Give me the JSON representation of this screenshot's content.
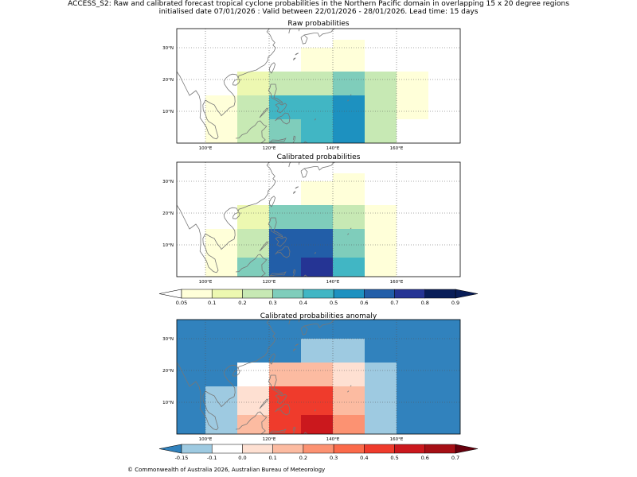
{
  "header": {
    "line1": "ACCESS_S2: Raw and calibrated forecast tropical cyclone probabilities in the Northern Pacific domain in overlapping 15 x 20 degree regions",
    "line2": "initialised date 07/01/2026 :  Valid between 22/01/2026 - 28/01/2026. Lead time: 15 days"
  },
  "panels": {
    "raw": {
      "title": "Raw probabilities"
    },
    "calibrated": {
      "title": "Calibrated probabilities"
    },
    "anomaly": {
      "title": "Calibrated probabilities anomaly"
    }
  },
  "axes": {
    "x_ticks": [
      {
        "lon": 100,
        "label": "100°E"
      },
      {
        "lon": 120,
        "label": "120°E"
      },
      {
        "lon": 140,
        "label": "140°E"
      },
      {
        "lon": 160,
        "label": "160°E"
      }
    ],
    "y_ticks": [
      {
        "lat": 10,
        "label": "10°N"
      },
      {
        "lat": 20,
        "label": "20°N"
      },
      {
        "lat": 30,
        "label": "30°N"
      }
    ],
    "lon_range": [
      91,
      180
    ],
    "lat_range": [
      0,
      36
    ]
  },
  "colorbars": {
    "probability": {
      "labels": [
        "0.05",
        "0.1",
        "0.2",
        "0.3",
        "0.4",
        "0.5",
        "0.6",
        "0.7",
        "0.8",
        "0.9"
      ],
      "colors": [
        "#ffffd9",
        "#edf8b1",
        "#c7e9b4",
        "#7fcdbb",
        "#41b6c4",
        "#1d91c0",
        "#225ea8",
        "#253494",
        "#081d58"
      ],
      "under": "#ffffff",
      "over": "#081d58"
    },
    "anomaly": {
      "labels": [
        "-0.15",
        "-0.1",
        "0.0",
        "0.1",
        "0.2",
        "0.3",
        "0.4",
        "0.5",
        "0.6",
        "0.7"
      ],
      "colors": [
        "#9ecae1",
        "#ffffff",
        "#fee0d2",
        "#fcbba1",
        "#fc9272",
        "#fb6a4a",
        "#ef3b2c",
        "#cb181d",
        "#a50f15"
      ],
      "under": "#3182bd",
      "over": "#67000d"
    }
  },
  "chart_data": [
    {
      "type": "heatmap",
      "title": "Raw probabilities",
      "cells": [
        {
          "lon": [
            120,
            130
          ],
          "lat": [
            0,
            7.5
          ],
          "value": 0.3
        },
        {
          "lon": [
            110,
            120
          ],
          "lat": [
            0,
            7.5
          ],
          "value": 0.2
        },
        {
          "lon": [
            130,
            140
          ],
          "lat": [
            0,
            15
          ],
          "value": 0.4
        },
        {
          "lon": [
            140,
            150
          ],
          "lat": [
            0,
            15
          ],
          "value": 0.5
        },
        {
          "lon": [
            150,
            160
          ],
          "lat": [
            0,
            22.5
          ],
          "value": 0.2
        },
        {
          "lon": [
            110,
            120
          ],
          "lat": [
            7.5,
            15
          ],
          "value": 0.2
        },
        {
          "lon": [
            120,
            130
          ],
          "lat": [
            7.5,
            15
          ],
          "value": 0.4
        },
        {
          "lon": [
            100,
            110
          ],
          "lat": [
            0,
            15
          ],
          "value": 0.05
        },
        {
          "lon": [
            110,
            120
          ],
          "lat": [
            15,
            22.5
          ],
          "value": 0.1
        },
        {
          "lon": [
            120,
            130
          ],
          "lat": [
            15,
            22.5
          ],
          "value": 0.2
        },
        {
          "lon": [
            130,
            140
          ],
          "lat": [
            15,
            22.5
          ],
          "value": 0.2
        },
        {
          "lon": [
            140,
            150
          ],
          "lat": [
            15,
            22.5
          ],
          "value": 0.3
        },
        {
          "lon": [
            160,
            170
          ],
          "lat": [
            7.5,
            22.5
          ],
          "value": 0.05
        },
        {
          "lon": [
            130,
            150
          ],
          "lat": [
            22.5,
            30
          ],
          "value": 0.05
        },
        {
          "lon": [
            140,
            150
          ],
          "lat": [
            30,
            32.5
          ],
          "value": 0.05
        }
      ]
    },
    {
      "type": "heatmap",
      "title": "Calibrated probabilities",
      "cells": [
        {
          "lon": [
            110,
            120
          ],
          "lat": [
            0,
            6
          ],
          "value": 0.3
        },
        {
          "lon": [
            120,
            130
          ],
          "lat": [
            0,
            15
          ],
          "value": 0.6
        },
        {
          "lon": [
            130,
            140
          ],
          "lat": [
            0,
            15
          ],
          "value": 0.6
        },
        {
          "lon": [
            140,
            150
          ],
          "lat": [
            0,
            6
          ],
          "value": 0.4
        },
        {
          "lon": [
            140,
            150
          ],
          "lat": [
            6,
            15
          ],
          "value": 0.3
        },
        {
          "lon": [
            150,
            160
          ],
          "lat": [
            0,
            22.5
          ],
          "value": 0.05
        },
        {
          "lon": [
            110,
            120
          ],
          "lat": [
            6,
            15
          ],
          "value": 0.2
        },
        {
          "lon": [
            100,
            110
          ],
          "lat": [
            0,
            15
          ],
          "value": 0.05
        },
        {
          "lon": [
            110,
            120
          ],
          "lat": [
            15,
            22.5
          ],
          "value": 0.1
        },
        {
          "lon": [
            120,
            140
          ],
          "lat": [
            15,
            22.5
          ],
          "value": 0.3
        },
        {
          "lon": [
            140,
            150
          ],
          "lat": [
            15,
            22.5
          ],
          "value": 0.2
        },
        {
          "lon": [
            130,
            140
          ],
          "lat": [
            0,
            6
          ],
          "value": 0.7
        },
        {
          "lon": [
            130,
            150
          ],
          "lat": [
            22.5,
            30
          ],
          "value": 0.05
        },
        {
          "lon": [
            140,
            150
          ],
          "lat": [
            30,
            32.5
          ],
          "value": 0.05
        }
      ]
    },
    {
      "type": "heatmap",
      "title": "Calibrated probabilities anomaly",
      "background_value": -0.2,
      "cells": [
        {
          "lon": [
            100,
            110
          ],
          "lat": [
            0,
            15
          ],
          "value": -0.15
        },
        {
          "lon": [
            110,
            120
          ],
          "lat": [
            0,
            15
          ],
          "value": 0.05
        },
        {
          "lon": [
            110,
            120
          ],
          "lat": [
            0,
            6
          ],
          "value": 0.1
        },
        {
          "lon": [
            120,
            130
          ],
          "lat": [
            0,
            15
          ],
          "value": 0.45
        },
        {
          "lon": [
            130,
            140
          ],
          "lat": [
            6,
            15
          ],
          "value": 0.45
        },
        {
          "lon": [
            130,
            140
          ],
          "lat": [
            0,
            6
          ],
          "value": 0.55
        },
        {
          "lon": [
            140,
            150
          ],
          "lat": [
            0,
            6
          ],
          "value": 0.25
        },
        {
          "lon": [
            140,
            150
          ],
          "lat": [
            6,
            15
          ],
          "value": 0.15
        },
        {
          "lon": [
            150,
            160
          ],
          "lat": [
            0,
            22.5
          ],
          "value": -0.15
        },
        {
          "lon": [
            110,
            120
          ],
          "lat": [
            15,
            22.5
          ],
          "value": -0.05
        },
        {
          "lon": [
            120,
            140
          ],
          "lat": [
            15,
            22.5
          ],
          "value": 0.15
        },
        {
          "lon": [
            140,
            150
          ],
          "lat": [
            15,
            22.5
          ],
          "value": 0.05
        },
        {
          "lon": [
            130,
            150
          ],
          "lat": [
            22.5,
            30
          ],
          "value": -0.15
        }
      ]
    }
  ],
  "footer": {
    "credit": "© Commonwealth of Australia 2026, Australian Bureau of Meteorology"
  }
}
